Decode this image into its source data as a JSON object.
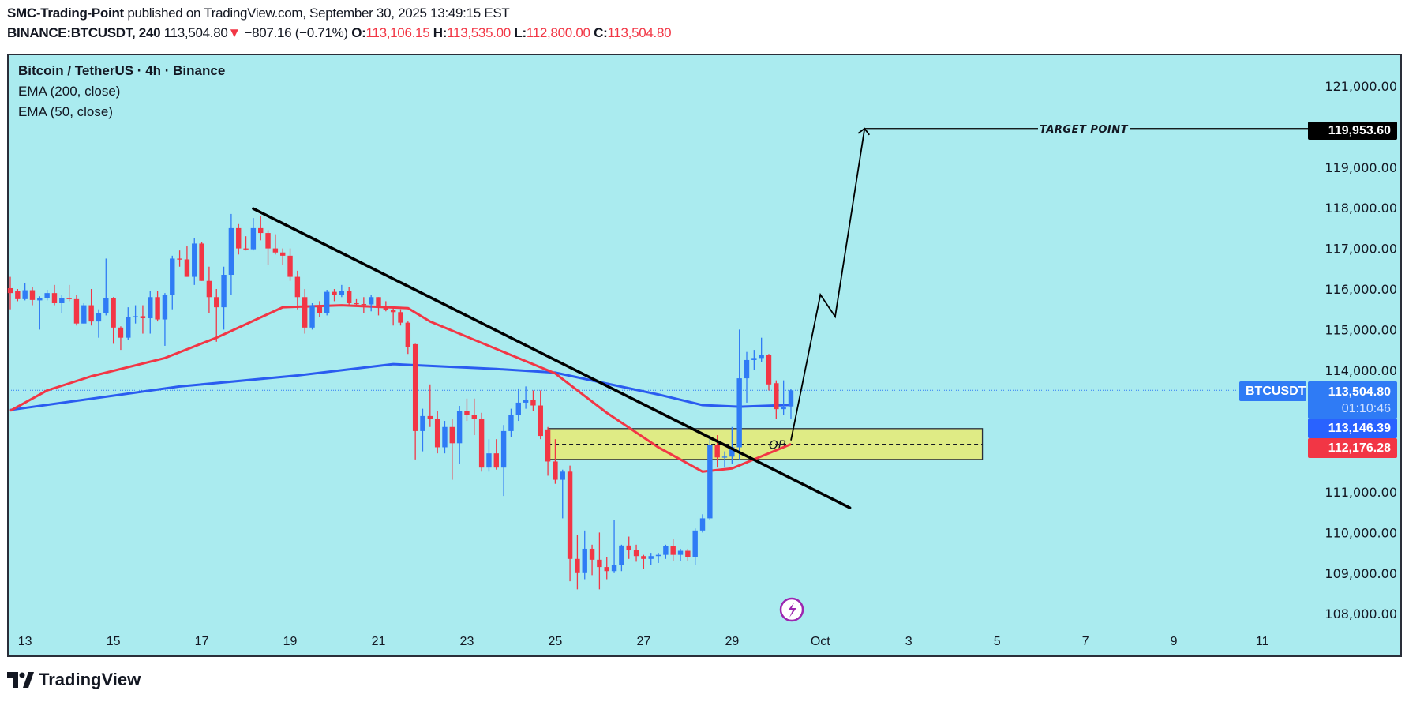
{
  "header": {
    "author": "SMC-Trading-Point",
    "published_text": "published on TradingView.com, September 30, 2025 13:49:15 EST",
    "symbol": "BINANCE:BTCUSDT, 240",
    "last": "113,504.80",
    "change": "−807.16 (−0.71%)",
    "o_label": "O:",
    "o": "113,106.15",
    "h_label": "H:",
    "h": "113,535.00",
    "l_label": "L:",
    "l": "112,800.00",
    "c_label": "C:",
    "c": "113,504.80",
    "down_color": "#f23645"
  },
  "legend": {
    "title": "Bitcoin / TetherUS · 4h · Binance",
    "ema200": "EMA (200, close)",
    "ema50": "EMA (50, close)"
  },
  "chart_data": {
    "type": "candlestick",
    "interval": "4h",
    "ylim": [
      107500,
      121700
    ],
    "colors": {
      "up": "#2f7bf5",
      "down": "#f23645",
      "background": "#aaebef",
      "ema200": "#2a5cf0",
      "ema50": "#f23645"
    },
    "y_ticks": [
      {
        "value": 121000,
        "label": "121,000.00"
      },
      {
        "value": 119000,
        "label": "119,000.00"
      },
      {
        "value": 118000,
        "label": "118,000.00"
      },
      {
        "value": 117000,
        "label": "117,000.00"
      },
      {
        "value": 116000,
        "label": "116,000.00"
      },
      {
        "value": 115000,
        "label": "115,000.00"
      },
      {
        "value": 114000,
        "label": "114,000.00"
      },
      {
        "value": 111000,
        "label": "111,000.00"
      },
      {
        "value": 110000,
        "label": "110,000.00"
      },
      {
        "value": 109000,
        "label": "109,000.00"
      },
      {
        "value": 108000,
        "label": "108,000.00"
      }
    ],
    "x_ticks": [
      {
        "date": "09-13 00:00",
        "label": "13"
      },
      {
        "date": "09-15 00:00",
        "label": "15"
      },
      {
        "date": "09-17 00:00",
        "label": "17"
      },
      {
        "date": "09-19 00:00",
        "label": "19"
      },
      {
        "date": "09-21 00:00",
        "label": "21"
      },
      {
        "date": "09-23 00:00",
        "label": "23"
      },
      {
        "date": "09-25 00:00",
        "label": "25"
      },
      {
        "date": "09-27 00:00",
        "label": "27"
      },
      {
        "date": "09-29 00:00",
        "label": "29"
      },
      {
        "date": "10-01 00:00",
        "label": "Oct"
      },
      {
        "date": "10-03 00:00",
        "label": "3"
      },
      {
        "date": "10-05 00:00",
        "label": "5"
      },
      {
        "date": "10-07 00:00",
        "label": "7"
      },
      {
        "date": "10-09 00:00",
        "label": "9"
      },
      {
        "date": "10-11 00:00",
        "label": "11"
      }
    ],
    "candles_ohlc": [
      [
        116020,
        116300,
        115500,
        115900
      ],
      [
        115950,
        116000,
        115700,
        115750
      ],
      [
        115750,
        116150,
        115720,
        115970
      ],
      [
        115970,
        116050,
        115600,
        115730
      ],
      [
        115720,
        115820,
        115000,
        115780
      ],
      [
        115780,
        115980,
        115720,
        115900
      ],
      [
        115900,
        116100,
        115600,
        115650
      ],
      [
        115650,
        115850,
        115400,
        115780
      ],
      [
        115780,
        116100,
        115700,
        115750
      ],
      [
        115750,
        115850,
        115100,
        115150
      ],
      [
        115150,
        115650,
        115150,
        115600
      ],
      [
        115600,
        116000,
        115100,
        115200
      ],
      [
        115200,
        115500,
        114800,
        115400
      ],
      [
        115400,
        116750,
        115350,
        115780
      ],
      [
        115780,
        115800,
        114650,
        115050
      ],
      [
        115050,
        115080,
        114500,
        114800
      ],
      [
        114800,
        115550,
        114750,
        115300
      ],
      [
        115300,
        115600,
        115150,
        115330
      ],
      [
        115330,
        115600,
        114900,
        115280
      ],
      [
        115280,
        115950,
        114900,
        115800
      ],
      [
        115800,
        115950,
        115200,
        115250
      ],
      [
        115250,
        115900,
        114600,
        115850
      ],
      [
        115850,
        116820,
        115500,
        116750
      ],
      [
        116750,
        116950,
        116550,
        116730
      ],
      [
        116730,
        117050,
        116300,
        116300
      ],
      [
        116300,
        117250,
        116100,
        117120
      ],
      [
        117120,
        117150,
        116200,
        116200
      ],
      [
        116200,
        116550,
        115400,
        115800
      ],
      [
        115800,
        116000,
        114700,
        115550
      ],
      [
        115550,
        116550,
        115000,
        116350
      ],
      [
        116350,
        117850,
        115850,
        117500
      ],
      [
        117500,
        117600,
        116850,
        117000
      ],
      [
        117000,
        117300,
        116950,
        116980
      ],
      [
        116980,
        117750,
        116950,
        117500
      ],
      [
        117500,
        117800,
        117200,
        117380
      ],
      [
        117380,
        117450,
        116600,
        117000
      ],
      [
        117000,
        117350,
        116850,
        116900
      ],
      [
        116900,
        117000,
        116600,
        116820
      ],
      [
        116820,
        117000,
        116200,
        116300
      ],
      [
        116300,
        116450,
        115500,
        115800
      ],
      [
        115800,
        116000,
        114900,
        115050
      ],
      [
        115050,
        115650,
        115000,
        115600
      ],
      [
        115600,
        115700,
        115300,
        115400
      ],
      [
        115400,
        115980,
        115350,
        115930
      ],
      [
        115930,
        116000,
        115700,
        115850
      ],
      [
        115850,
        116100,
        115800,
        115960
      ],
      [
        115960,
        116050,
        115600,
        115650
      ],
      [
        115650,
        115750,
        115600,
        115630
      ],
      [
        115630,
        115800,
        115400,
        115620
      ],
      [
        115620,
        115850,
        115450,
        115800
      ],
      [
        115800,
        115800,
        115350,
        115570
      ],
      [
        115570,
        115700,
        115450,
        115480
      ],
      [
        115480,
        115550,
        115100,
        115430
      ],
      [
        115430,
        115500,
        115100,
        115170
      ],
      [
        115170,
        115200,
        114400,
        114570
      ],
      [
        114640,
        114650,
        111800,
        112500
      ],
      [
        112500,
        113050,
        112000,
        112870
      ],
      [
        112870,
        113650,
        112600,
        112800
      ],
      [
        112800,
        113000,
        111950,
        112100
      ],
      [
        112100,
        112750,
        111950,
        112600
      ],
      [
        112600,
        112800,
        111300,
        112200
      ],
      [
        112200,
        113120,
        111700,
        113000
      ],
      [
        113000,
        113300,
        112750,
        112900
      ],
      [
        112900,
        113300,
        112400,
        112800
      ],
      [
        112800,
        112950,
        111500,
        111600
      ],
      [
        111600,
        112300,
        111500,
        111950
      ],
      [
        111950,
        112300,
        111550,
        111600
      ],
      [
        111600,
        112650,
        110900,
        112500
      ],
      [
        112500,
        113050,
        112350,
        112900
      ],
      [
        112900,
        113550,
        112750,
        113200
      ],
      [
        113200,
        113600,
        113050,
        113270
      ],
      [
        113270,
        113500,
        113000,
        113130
      ],
      [
        113130,
        113500,
        112300,
        112380
      ],
      [
        112540,
        112600,
        111400,
        111750
      ],
      [
        111750,
        112300,
        111200,
        111300
      ],
      [
        111300,
        111550,
        110350,
        111500
      ],
      [
        111500,
        111650,
        108800,
        109350
      ],
      [
        109350,
        109950,
        108600,
        109000
      ],
      [
        109000,
        110050,
        108850,
        109600
      ],
      [
        109600,
        109700,
        108950,
        109330
      ],
      [
        109330,
        110000,
        108600,
        109150
      ],
      [
        109150,
        109400,
        108850,
        109050
      ],
      [
        109050,
        110300,
        109000,
        109200
      ],
      [
        109200,
        109700,
        109050,
        109680
      ],
      [
        109680,
        109900,
        109350,
        109560
      ],
      [
        109560,
        109700,
        109280,
        109420
      ],
      [
        109420,
        109450,
        109100,
        109350
      ],
      [
        109350,
        109500,
        109200,
        109420
      ],
      [
        109420,
        109500,
        109250,
        109450
      ],
      [
        109450,
        109700,
        109350,
        109660
      ],
      [
        109660,
        109850,
        109300,
        109450
      ],
      [
        109450,
        109600,
        109300,
        109550
      ],
      [
        109550,
        109600,
        109300,
        109400
      ],
      [
        109400,
        110100,
        109200,
        110050
      ],
      [
        110050,
        110450,
        110000,
        110350
      ],
      [
        110350,
        112400,
        110300,
        112150
      ],
      [
        112150,
        112400,
        111600,
        111850
      ],
      [
        111850,
        112000,
        111600,
        111870
      ],
      [
        111870,
        112600,
        111700,
        112100
      ],
      [
        112100,
        115000,
        111800,
        113800
      ],
      [
        113800,
        114450,
        113200,
        114250
      ],
      [
        114250,
        114500,
        114000,
        114300
      ],
      [
        114300,
        114800,
        114200,
        114380
      ],
      [
        114380,
        114400,
        113500,
        113650
      ],
      [
        113680,
        113750,
        112800,
        113040
      ],
      [
        113040,
        113750,
        112900,
        113100
      ],
      [
        113106.15,
        113535,
        112800,
        113504.8
      ]
    ],
    "series": [
      {
        "name": "EMA (200, close)",
        "color": "#2a5cf0",
        "points": [
          [
            "09-12 16:00",
            113020
          ],
          [
            "09-16 12:00",
            113600
          ],
          [
            "09-19 04:00",
            113870
          ],
          [
            "09-21 08:00",
            114150
          ],
          [
            "09-23 16:00",
            114030
          ],
          [
            "09-25 00:00",
            113940
          ],
          [
            "09-27 08:00",
            113400
          ],
          [
            "09-28 08:00",
            113140
          ],
          [
            "09-29 04:00",
            113100
          ],
          [
            "09-30 08:00",
            113146.39
          ]
        ]
      },
      {
        "name": "EMA (50, close)",
        "color": "#f23645",
        "points": [
          [
            "09-12 16:00",
            113000
          ],
          [
            "09-13 12:00",
            113500
          ],
          [
            "09-14 12:00",
            113850
          ],
          [
            "09-16 04:00",
            114300
          ],
          [
            "09-17 08:00",
            114800
          ],
          [
            "09-18 20:00",
            115550
          ],
          [
            "09-20 04:00",
            115600
          ],
          [
            "09-21 16:00",
            115530
          ],
          [
            "09-22 04:00",
            115200
          ],
          [
            "09-25 00:00",
            113920
          ],
          [
            "09-26 04:00",
            112950
          ],
          [
            "09-27 08:00",
            112100
          ],
          [
            "09-28 08:00",
            111500
          ],
          [
            "09-29 00:00",
            111580
          ],
          [
            "09-30 08:00",
            112176.28
          ]
        ]
      }
    ],
    "drawings": {
      "trendline": [
        [
          "09-18 04:00",
          117980
        ],
        [
          "10-01 16:00",
          110610
        ]
      ],
      "order_block": {
        "from": "09-24 20:00",
        "to": "10-04 16:00",
        "top": 112560,
        "bottom": 111800,
        "mid": 112176,
        "label": "OB",
        "fill": "#dfeb85"
      },
      "projection": [
        [
          "09-30 08:00",
          112270
        ],
        [
          "10-01 00:00",
          115860
        ],
        [
          "10-01 08:00",
          115320
        ],
        [
          "10-02 00:00",
          119953.6
        ]
      ],
      "target": {
        "from": "10-02 00:00",
        "price": 119953.6,
        "label": "TARGET POINT"
      }
    }
  },
  "price_scale": {
    "target_label": "119,953.60",
    "symbol_tag": "BTCUSDT",
    "last_price": "113,504.80",
    "countdown": "01:10:46",
    "ema200_value": "113,146.39",
    "ema50_value": "112,176.28"
  },
  "footer": {
    "brand": "TradingView"
  }
}
